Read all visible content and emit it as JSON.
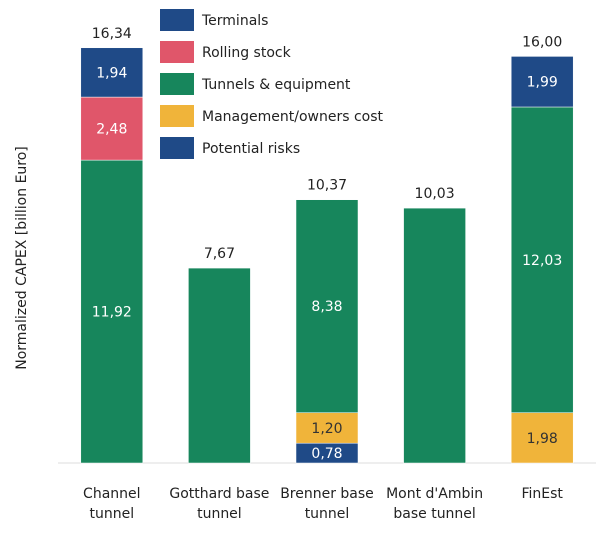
{
  "chart_data": {
    "type": "stacked_bar",
    "y_label": "Normalized CAPEX [billion Euro]",
    "categories": [
      "Channel tunnel",
      "Gotthard base tunnel",
      "Brenner base tunnel",
      "Mont d'Ambin base tunnel",
      "FinEst"
    ],
    "series": [
      {
        "name": "Potential risks",
        "color": "#1f4a87",
        "values": [
          null,
          null,
          0.78,
          null,
          null
        ],
        "value_labels": [
          null,
          null,
          "0,78",
          null,
          null
        ]
      },
      {
        "name": "Management/owners cost",
        "color": "#f0b43a",
        "values": [
          null,
          null,
          1.2,
          null,
          1.98
        ],
        "value_labels": [
          null,
          null,
          "1,20",
          null,
          "1,98"
        ]
      },
      {
        "name": "Tunnels & equipment",
        "color": "#17865c",
        "values": [
          11.92,
          7.67,
          8.38,
          10.03,
          12.03
        ],
        "value_labels": [
          "11,92",
          null,
          "8,38",
          null,
          "12,03"
        ]
      },
      {
        "name": "Rolling stock",
        "color": "#e0566a",
        "values": [
          2.48,
          null,
          null,
          null,
          null
        ],
        "value_labels": [
          "2,48",
          null,
          null,
          null,
          null
        ]
      },
      {
        "name": "Terminals",
        "color": "#1f4a87",
        "values": [
          1.94,
          null,
          null,
          null,
          1.99
        ],
        "value_labels": [
          "1,94",
          null,
          null,
          null,
          "1,99"
        ]
      }
    ],
    "legend_order": [
      4,
      3,
      2,
      1,
      0
    ],
    "totals": [
      16.34,
      7.67,
      10.37,
      10.03,
      16.0
    ],
    "total_labels": [
      "16,34",
      "7,67",
      "10,37",
      "10,03",
      "16,00"
    ],
    "ylim": [
      0,
      17
    ]
  }
}
